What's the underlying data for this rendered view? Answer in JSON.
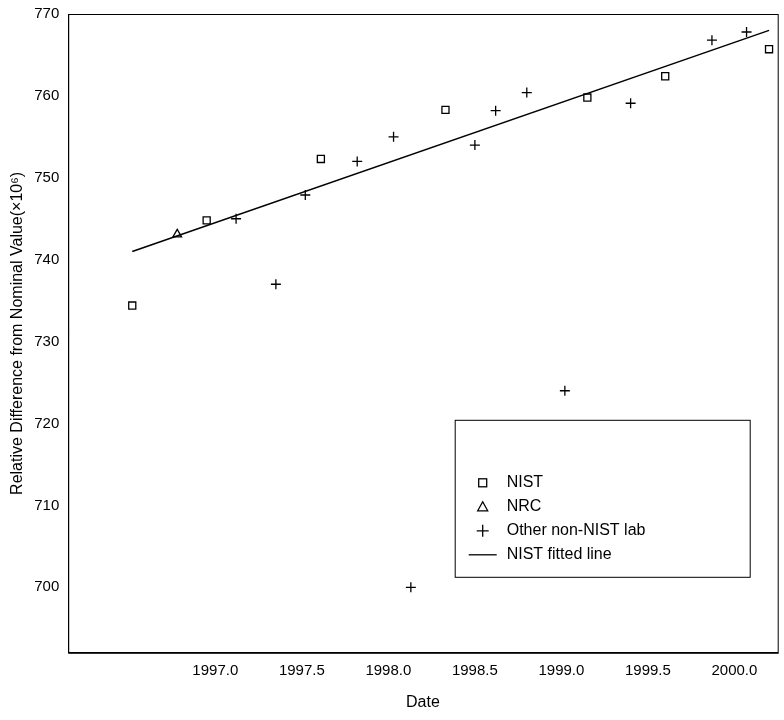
{
  "chart_data": {
    "type": "scatter",
    "x_label": "Date",
    "y_label": "Relative Difference from Nominal Value(×10⁶)",
    "xlim": [
      1996.15,
      2000.25
    ],
    "xticks": [
      {
        "value": 1997.0,
        "label": "1997.0"
      },
      {
        "value": 1997.5,
        "label": "1997.5"
      },
      {
        "value": 1998.0,
        "label": "1998.0"
      },
      {
        "value": 1998.5,
        "label": "1998.5"
      },
      {
        "value": 1999.0,
        "label": "1999.0"
      },
      {
        "value": 1999.5,
        "label": "1999.5"
      },
      {
        "value": 2000.0,
        "label": "2000.0"
      }
    ],
    "ylim": [
      692,
      770
    ],
    "yticks": [
      700,
      710,
      720,
      730,
      740,
      750,
      760,
      770
    ],
    "grid": false,
    "legend": "lower right",
    "series": [
      {
        "name": "NIST",
        "type": "scatter",
        "marker": "square",
        "color": "#000000",
        "x": [
          1996.52,
          1996.95,
          1997.61,
          1998.33,
          1999.15,
          1999.6,
          2000.2
        ],
        "values": [
          734.4,
          744.8,
          752.3,
          758.3,
          759.8,
          762.4,
          765.7
        ]
      },
      {
        "name": "NRC",
        "type": "scatter",
        "marker": "triangle",
        "color": "#000000",
        "x": [
          1996.78
        ],
        "values": [
          743.1
        ]
      },
      {
        "name": "Other non-NIST lab",
        "type": "scatter",
        "marker": "plus",
        "color": "#000000",
        "x": [
          1997.12,
          1997.35,
          1997.52,
          1997.82,
          1998.03,
          1998.13,
          1998.5,
          1998.62,
          1998.8,
          1999.02,
          1999.4,
          1999.87,
          2000.07
        ],
        "values": [
          745.0,
          737.0,
          747.9,
          752.0,
          755.0,
          700.0,
          754.0,
          758.2,
          760.4,
          724.0,
          759.1,
          766.8,
          767.8
        ]
      },
      {
        "name": "NIST fitted line",
        "type": "line",
        "line_style": "solid",
        "color": "#000000",
        "x": [
          1996.52,
          2000.2
        ],
        "values": [
          741.0,
          768.0
        ]
      }
    ]
  }
}
